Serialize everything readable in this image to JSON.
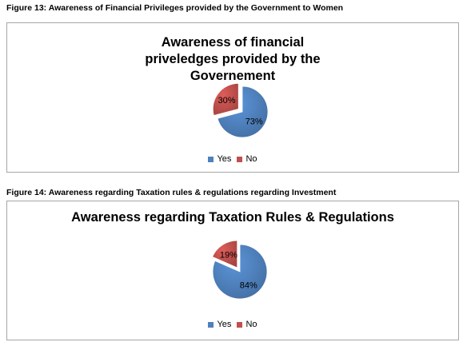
{
  "figures": [
    {
      "caption": "Figure 13: Awareness of Financial Privileges provided by the Government to Women"
    },
    {
      "caption": "Figure 14: Awareness regarding Taxation rules & regulations regarding Investment"
    }
  ],
  "colors": {
    "yes": "#4f81bd",
    "no": "#c0504d"
  },
  "chart_data": [
    {
      "type": "pie",
      "title": "Awareness of financial priveledges provided by the Governement",
      "categories": [
        "Yes",
        "No"
      ],
      "values": [
        73,
        30
      ],
      "data_labels": [
        "73%",
        "30%"
      ],
      "legend": [
        "Yes",
        "No"
      ],
      "legend_position": "bottom"
    },
    {
      "type": "pie",
      "title": "Awareness regarding Taxation Rules & Regulations",
      "categories": [
        "Yes",
        "No"
      ],
      "values": [
        84,
        19
      ],
      "data_labels": [
        "84%",
        "19%"
      ],
      "legend": [
        "Yes",
        "No"
      ],
      "legend_position": "bottom"
    }
  ]
}
